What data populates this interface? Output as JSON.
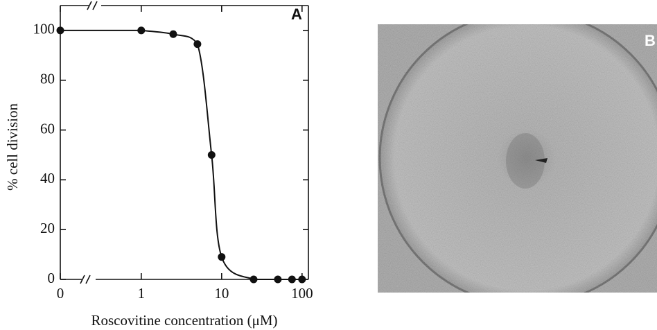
{
  "chart_data": {
    "type": "line",
    "panel_label": "A",
    "x_label": "Roscovitine concentration (μM)",
    "y_label": "% cell division",
    "x": [
      0,
      1,
      2.5,
      5,
      7.5,
      10,
      25,
      50,
      75,
      100
    ],
    "values": [
      100,
      100,
      98.5,
      94.5,
      50,
      9,
      0,
      0,
      0,
      0
    ],
    "color": "#111111",
    "x_log": true,
    "x_break": true,
    "xlim": [
      0,
      120
    ],
    "xticks": [
      0,
      1,
      10,
      100
    ],
    "ylim": [
      0,
      110
    ],
    "yticks": [
      0,
      20,
      40,
      60,
      80,
      100
    ]
  },
  "image_panel": {
    "label": "B"
  }
}
